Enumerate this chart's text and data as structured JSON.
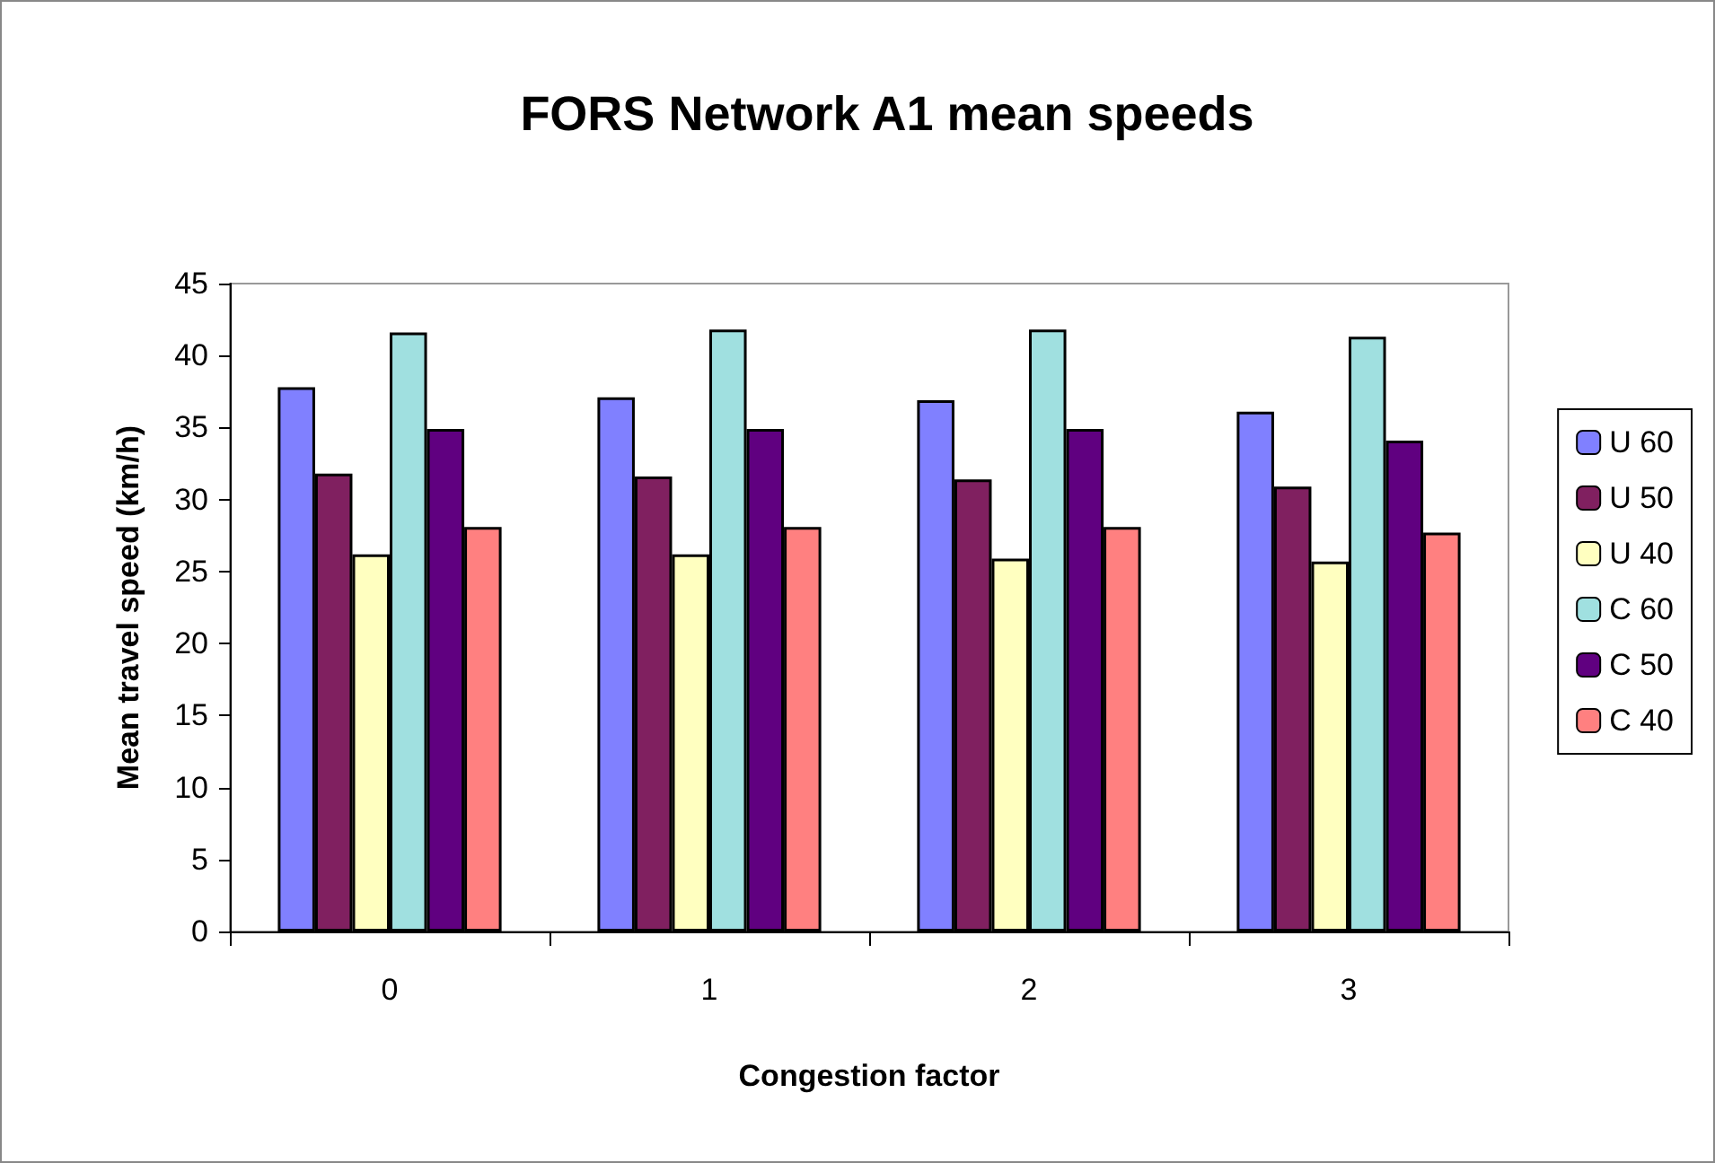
{
  "chart_data": {
    "type": "bar",
    "title": "FORS Network A1 mean speeds",
    "xlabel": "Congestion factor",
    "ylabel": "Mean travel speed (km/h)",
    "categories": [
      "0",
      "1",
      "2",
      "3"
    ],
    "series": [
      {
        "name": "U 60",
        "color": "#8080ff",
        "values": [
          37.8,
          37.1,
          36.9,
          36.1
        ]
      },
      {
        "name": "U 50",
        "color": "#802060",
        "values": [
          31.8,
          31.6,
          31.4,
          30.9
        ]
      },
      {
        "name": "U 40",
        "color": "#ffffc0",
        "values": [
          26.2,
          26.2,
          25.9,
          25.7
        ]
      },
      {
        "name": "C 60",
        "color": "#a0e0e0",
        "values": [
          41.6,
          41.8,
          41.8,
          41.3
        ]
      },
      {
        "name": "C 50",
        "color": "#600080",
        "values": [
          34.9,
          34.9,
          34.9,
          34.1
        ]
      },
      {
        "name": "C 40",
        "color": "#ff8080",
        "values": [
          28.1,
          28.1,
          28.1,
          27.7
        ]
      }
    ],
    "ylim": [
      0,
      45
    ],
    "yticks": [
      0,
      5,
      10,
      15,
      20,
      25,
      30,
      35,
      40,
      45
    ],
    "grid": false,
    "legend": "right"
  }
}
